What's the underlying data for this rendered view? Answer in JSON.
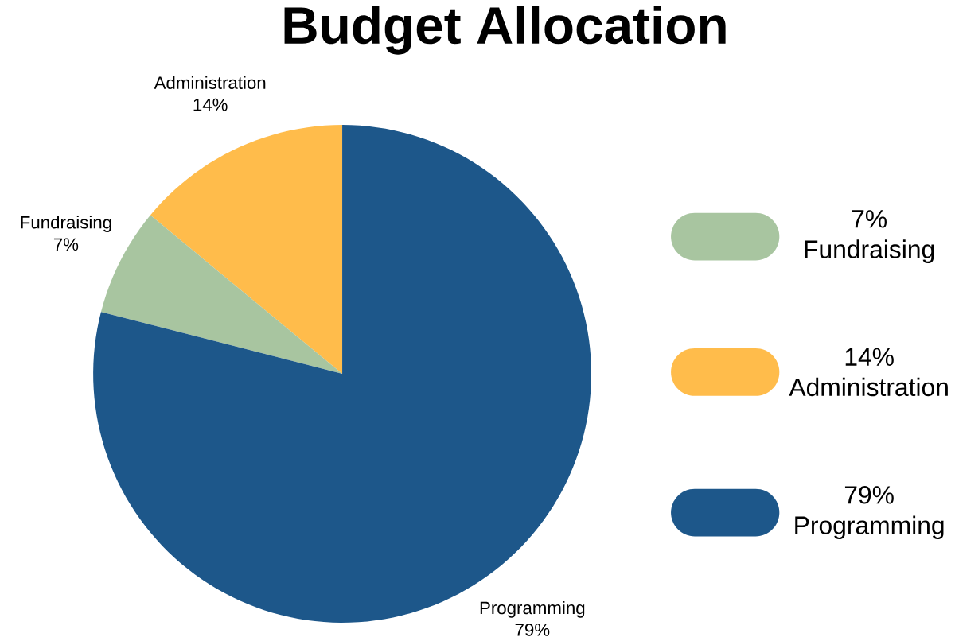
{
  "chart_data": {
    "type": "pie",
    "title": "Budget Allocation",
    "categories": [
      "Administration",
      "Fundraising",
      "Programming"
    ],
    "values": [
      14,
      7,
      79
    ],
    "value_labels": [
      "14%",
      "7%",
      "79%"
    ],
    "colors": [
      "#ffbc4b",
      "#a8c5a0",
      "#1d578a"
    ],
    "legend": "right"
  }
}
